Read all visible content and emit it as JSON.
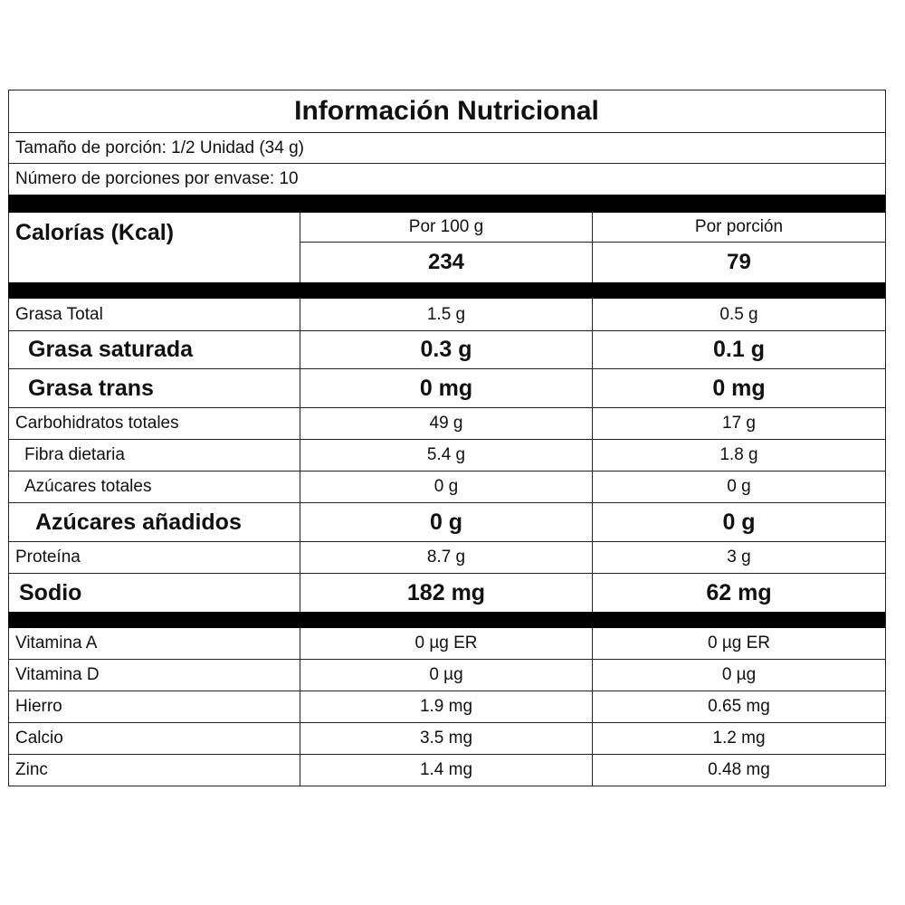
{
  "header": {
    "title": "Información Nutricional",
    "serving_size": "Tamaño de porción: 1/2 Unidad (34 g)",
    "servings_per_container": "Número de porciones por envase: 10"
  },
  "calories": {
    "label": "Calorías (Kcal)",
    "column_headers": [
      "Por 100 g",
      "Por porción"
    ],
    "values": [
      "234",
      "79"
    ]
  },
  "nutrients": [
    [
      "Grasa Total",
      "1.5 g",
      "0.5 g"
    ],
    [
      "Grasa saturada",
      "0.3 g",
      "0.1 g"
    ],
    [
      "Grasa trans",
      "0 mg",
      "0 mg"
    ],
    [
      "Carbohidratos totales",
      "49 g",
      "17 g"
    ],
    [
      "Fibra dietaria",
      "5.4 g",
      "1.8 g"
    ],
    [
      "Azúcares totales",
      "0 g",
      "0 g"
    ],
    [
      "Azúcares añadidos",
      "0 g",
      "0 g"
    ],
    [
      "Proteína",
      "8.7 g",
      "3 g"
    ],
    [
      "Sodio",
      "182 mg",
      "62 mg"
    ]
  ],
  "micronutrients": [
    [
      "Vitamina A",
      "0 µg ER",
      "0 µg ER"
    ],
    [
      "Vitamina D",
      "0 µg",
      "0 µg"
    ],
    [
      "Hierro",
      "1.9 mg",
      "0.65 mg"
    ],
    [
      "Calcio",
      "3.5 mg",
      "1.2 mg"
    ],
    [
      "Zinc",
      "1.4 mg",
      "0.48 mg"
    ]
  ]
}
